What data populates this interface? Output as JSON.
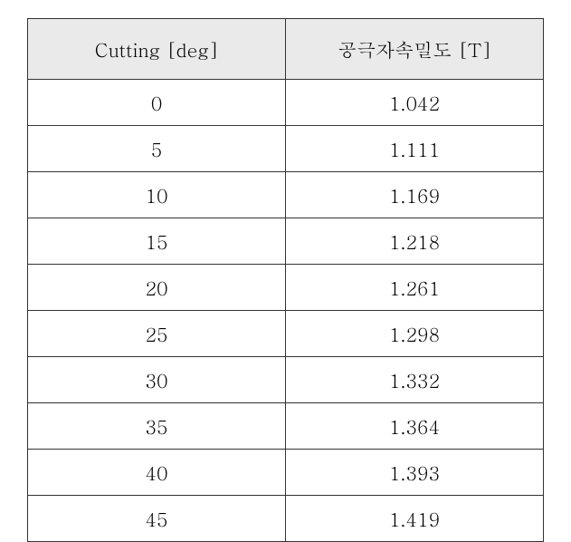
{
  "table": {
    "columns": [
      "Cutting [deg]",
      "공극자속밀도 [T]"
    ],
    "rows": [
      [
        "0",
        "1.042"
      ],
      [
        "5",
        "1.111"
      ],
      [
        "10",
        "1.169"
      ],
      [
        "15",
        "1.218"
      ],
      [
        "20",
        "1.261"
      ],
      [
        "25",
        "1.298"
      ],
      [
        "30",
        "1.332"
      ],
      [
        "35",
        "1.364"
      ],
      [
        "40",
        "1.393"
      ],
      [
        "45",
        "1.419"
      ]
    ],
    "header_bg": "#eaeaea",
    "border_color": "#333333",
    "font_size": 21
  }
}
